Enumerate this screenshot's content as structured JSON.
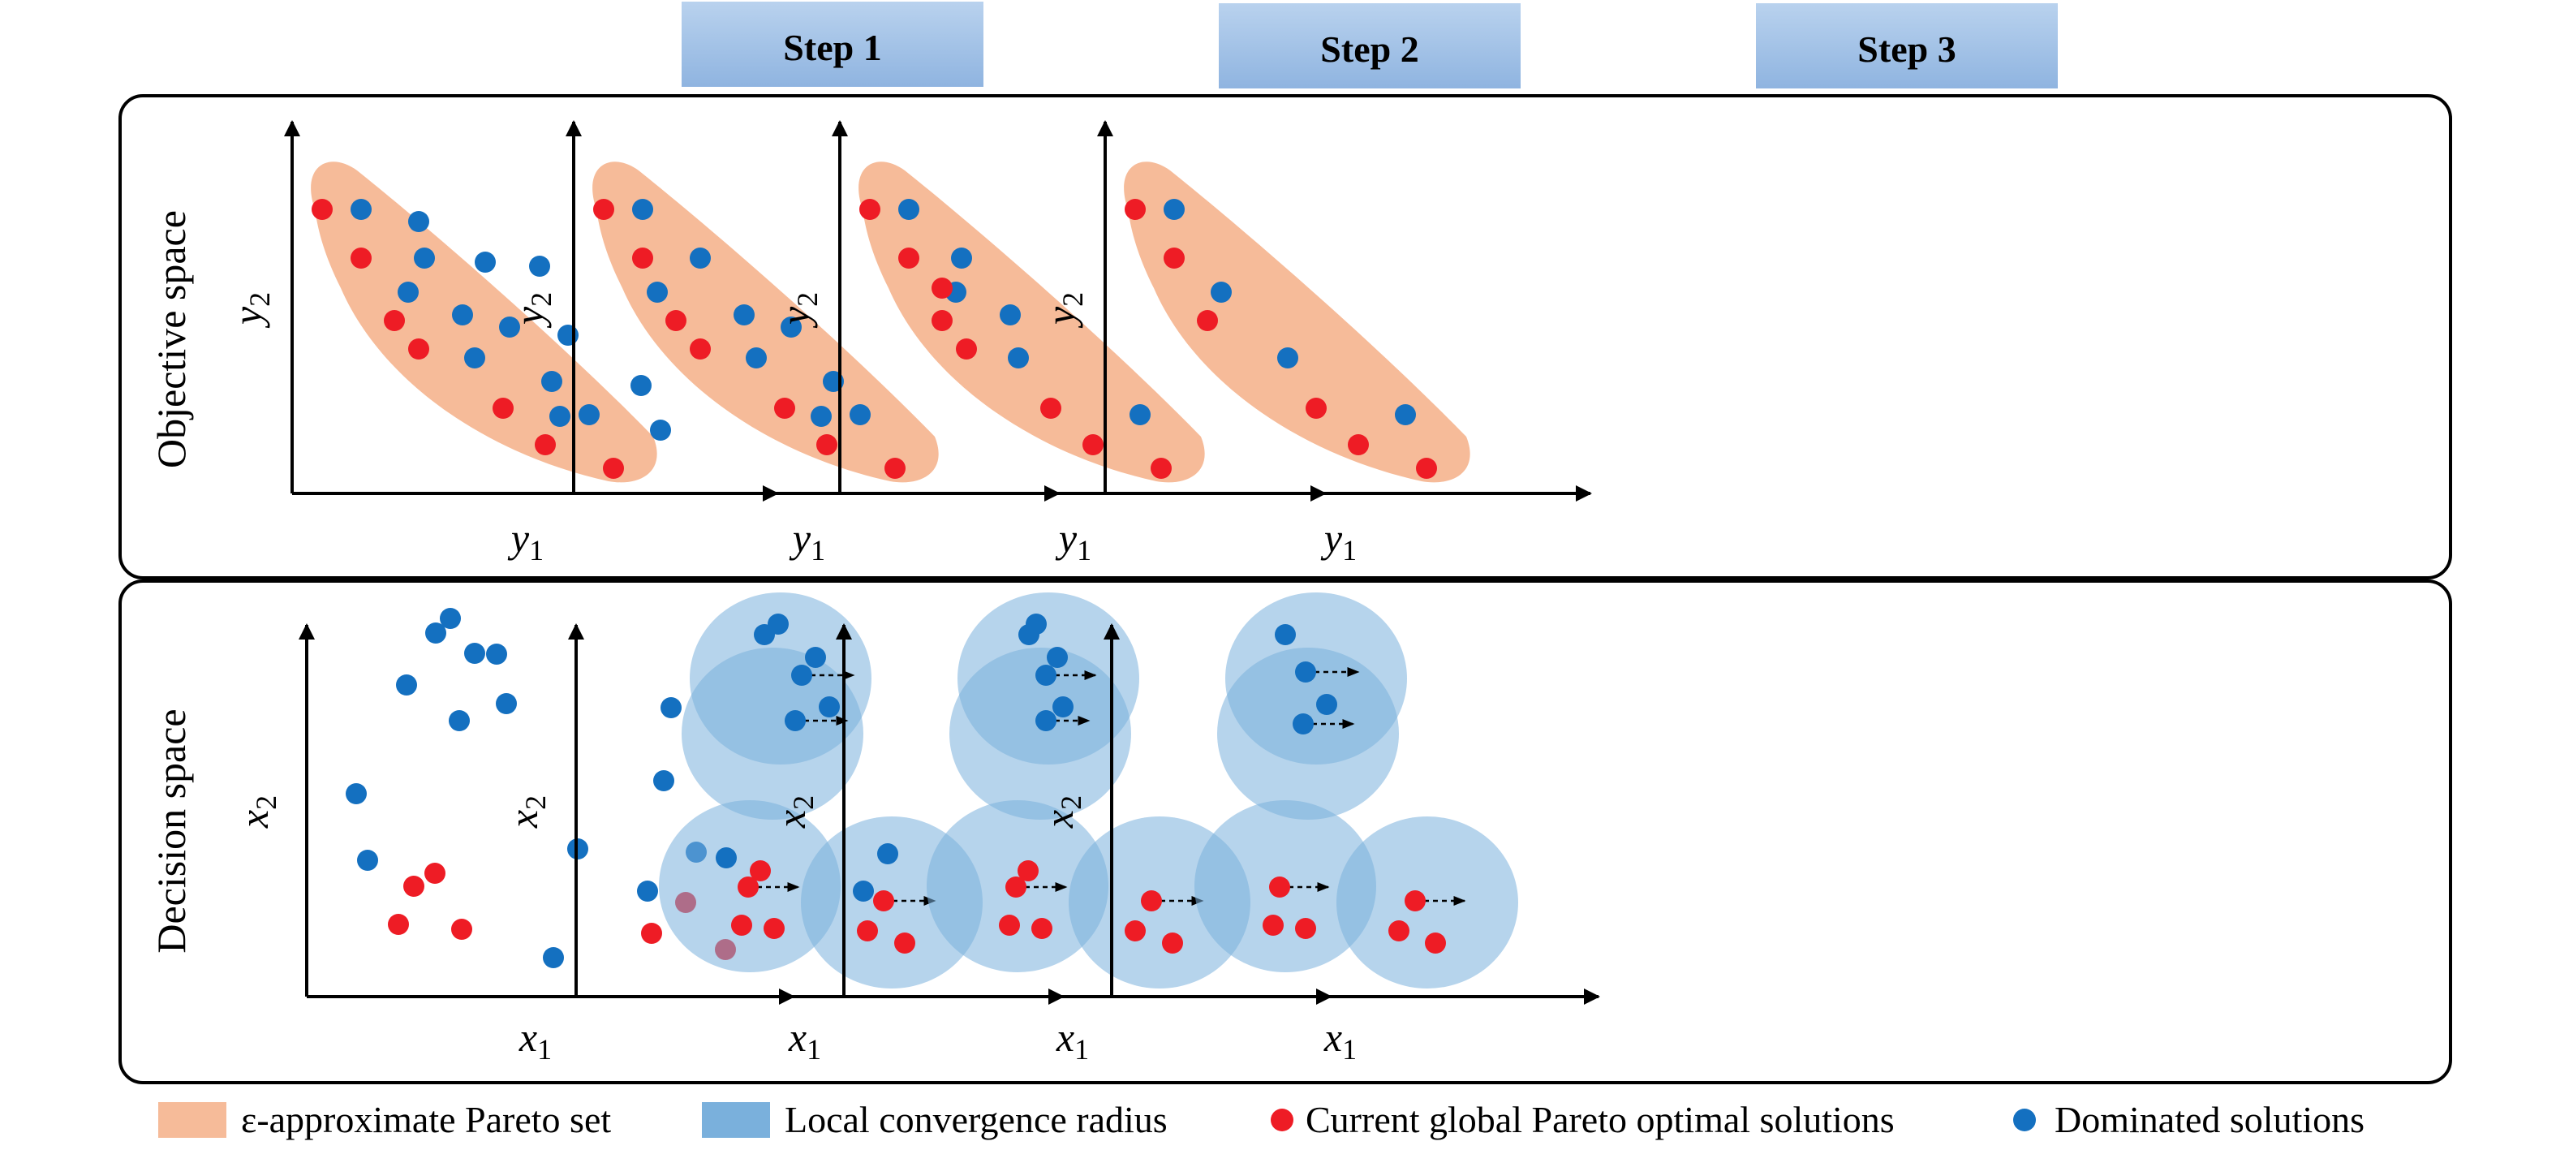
{
  "steps": [
    "Step 1",
    "Step 2",
    "Step 3"
  ],
  "rows": {
    "objective": "Objective space",
    "decision": "Decision space"
  },
  "axes": {
    "objective": {
      "x": "y",
      "x_sub": "1",
      "y": "y",
      "y_sub": "2"
    },
    "decision": {
      "x": "x",
      "x_sub": "1",
      "y": "x",
      "y_sub": "2"
    }
  },
  "legend": [
    {
      "key": "pareto_set",
      "label": "ε-approximate Pareto set",
      "color": "#f6bb99"
    },
    {
      "key": "radius",
      "label": "Local convergence radius",
      "color": "#7ab0dc"
    },
    {
      "key": "optimal",
      "label": "Current global Pareto optimal solutions",
      "color": "#ee1c25"
    },
    {
      "key": "dominated",
      "label": "Dominated solutions",
      "color": "#1470c0"
    }
  ],
  "colors": {
    "step_box_top": "#b9d2ee",
    "step_box_bottom": "#8fb4e0",
    "pareto_band": "#f6bb99",
    "radius_fill": "#7ab0dc",
    "optimal": "#ee1c25",
    "dominated": "#1470c0"
  },
  "icons": {
    "arrow": "dashed-arrow-icon"
  }
}
